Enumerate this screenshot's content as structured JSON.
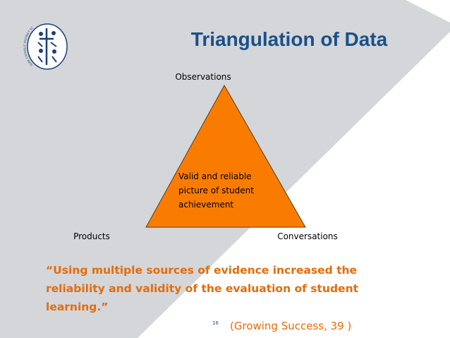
{
  "logo": {
    "text": "YORK CATHOLIC DISTRICT SCHOOL BOARD"
  },
  "header": {
    "title": "Triangulation of Data"
  },
  "diagram": {
    "top_label": "Observations",
    "left_label": "Products",
    "right_label": "Conversations",
    "center_text": [
      "Valid and reliable",
      "picture of student",
      "achievement"
    ]
  },
  "quote": {
    "lines": [
      "“Using multiple sources of evidence increased the",
      "reliability and validity of the evaluation of student",
      "learning.”"
    ]
  },
  "footer": {
    "page_number": "16",
    "citation": "(Growing Success, 39 )"
  }
}
